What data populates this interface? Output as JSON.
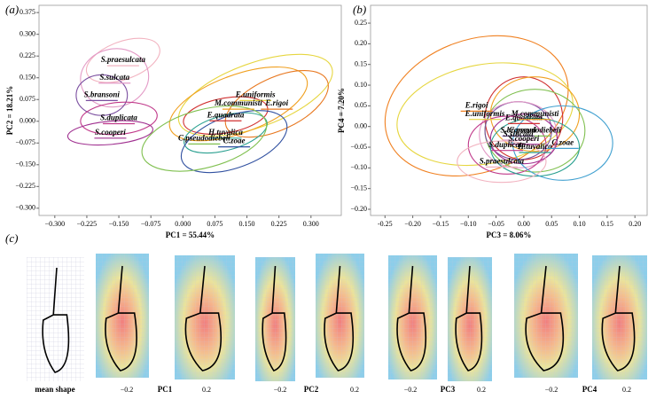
{
  "chart_data": [
    {
      "type": "ellipse",
      "panel": "(a)",
      "xlabel": "PC1 = 55.44%",
      "ylabel": "PC2 = 18.21%",
      "xlim": [
        -0.337,
        0.371
      ],
      "ylim": [
        -0.325,
        0.4
      ],
      "xticks": [
        {
          "value": -0.3,
          "label": "−0.300"
        },
        {
          "value": -0.225,
          "label": "−0.225"
        },
        {
          "value": -0.15,
          "label": "−0.150"
        },
        {
          "value": -0.075,
          "label": "−0.075"
        },
        {
          "value": 0,
          "label": "0.000"
        },
        {
          "value": 0.075,
          "label": "0.075"
        },
        {
          "value": 0.15,
          "label": "0.150"
        },
        {
          "value": 0.225,
          "label": "0.225"
        },
        {
          "value": 0.3,
          "label": "0.300"
        }
      ],
      "yticks": [
        0.375,
        {
          "value": 0.3,
          "label": "0.300"
        },
        0.225,
        {
          "value": 0.15,
          "label": "0.150"
        },
        0.075,
        {
          "value": 0,
          "label": "0.000"
        },
        {
          "value": -0.075,
          "label": "−0.075"
        },
        {
          "value": -0.15,
          "label": "−0.150"
        },
        {
          "value": -0.225,
          "label": "−0.225"
        },
        {
          "value": -0.3,
          "label": "−0.300"
        }
      ],
      "series": [
        {
          "name": "S.praesulcata",
          "color": "#f2b3c0",
          "center": [
            -0.14,
            0.21
          ],
          "radii": [
            0.09,
            0.065
          ],
          "angle": 20
        },
        {
          "name": "S.sulcata",
          "color": "#e39ac6",
          "center": [
            -0.16,
            0.15
          ],
          "radii": [
            0.08,
            0.1
          ],
          "angle": 10
        },
        {
          "name": "S.bransoni",
          "color": "#7b4fa0",
          "center": [
            -0.19,
            0.09
          ],
          "radii": [
            0.06,
            0.07
          ],
          "angle": 0
        },
        {
          "name": "S.duplicata",
          "color": "#c0398a",
          "center": [
            -0.15,
            0.01
          ],
          "radii": [
            0.09,
            0.055
          ],
          "angle": 5
        },
        {
          "name": "S.cooperi",
          "color": "#a03090",
          "center": [
            -0.17,
            -0.04
          ],
          "radii": [
            0.1,
            0.04
          ],
          "angle": 5
        },
        {
          "name": "E.uniformis",
          "color": "#e6d640",
          "center": [
            0.17,
            0.09
          ],
          "radii": [
            0.19,
            0.11
          ],
          "angle": 20
        },
        {
          "name": "M.communisti",
          "color": "#f0a020",
          "center": [
            0.13,
            0.06
          ],
          "radii": [
            0.17,
            0.1
          ],
          "angle": 20
        },
        {
          "name": "E.rigoi",
          "color": "#e87820",
          "center": [
            0.22,
            0.06
          ],
          "radii": [
            0.13,
            0.09
          ],
          "angle": 25
        },
        {
          "name": "E.quadrata",
          "color": "#d03030",
          "center": [
            0.1,
            0.02
          ],
          "radii": [
            0.1,
            0.06
          ],
          "angle": 10
        },
        {
          "name": "H.tuvalica",
          "color": "#2aa090",
          "center": [
            0.1,
            -0.04
          ],
          "radii": [
            0.1,
            0.06
          ],
          "angle": 15
        },
        {
          "name": "C.zoae",
          "color": "#3050a0",
          "center": [
            0.12,
            -0.07
          ],
          "radii": [
            0.13,
            0.09
          ],
          "angle": 20
        },
        {
          "name": "C.pseudodiebeli",
          "color": "#80c050",
          "center": [
            0.05,
            -0.06
          ],
          "radii": [
            0.15,
            0.1
          ],
          "angle": 15
        }
      ]
    },
    {
      "type": "ellipse",
      "panel": "(b)",
      "xlabel": "PC3 = 8.06%",
      "ylabel": "PC4 = 7.20%",
      "xlim": [
        -0.276,
        0.222
      ],
      "ylim": [
        -0.215,
        0.293
      ],
      "xticks": [
        -0.25,
        {
          "value": -0.2,
          "label": "−0.20"
        },
        {
          "value": -0.15,
          "label": "−0.15"
        },
        {
          "value": -0.1,
          "label": "−0.10"
        },
        {
          "value": -0.05,
          "label": "−0.05"
        },
        {
          "value": 0,
          "label": "0.00"
        },
        0.05,
        {
          "value": 0.1,
          "label": "0.10"
        },
        0.15,
        {
          "value": 0.2,
          "label": "0.20"
        }
      ],
      "yticks": [
        0.25,
        {
          "value": 0.2,
          "label": "0.20"
        },
        0.15,
        {
          "value": 0.1,
          "label": "0.10"
        },
        0.05,
        {
          "value": 0,
          "label": "0.00"
        },
        {
          "value": -0.05,
          "label": "−0.05"
        },
        {
          "value": -0.1,
          "label": "−0.10"
        },
        {
          "value": -0.15,
          "label": "−0.15"
        },
        {
          "value": -0.2,
          "label": "−0.20"
        }
      ],
      "series": [
        {
          "name": "E.rigoi",
          "color": "#f08020",
          "center": [
            -0.085,
            0.05
          ],
          "radii": [
            0.17,
            0.16
          ],
          "angle": 20
        },
        {
          "name": "E.uniformis",
          "color": "#e6d640",
          "center": [
            -0.07,
            0.03
          ],
          "radii": [
            0.16,
            0.12
          ],
          "angle": 10
        },
        {
          "name": "E.quadrata",
          "color": "#d03030",
          "center": [
            0.0,
            0.02
          ],
          "radii": [
            0.07,
            0.1
          ],
          "angle": 0
        },
        {
          "name": "M.communisti",
          "color": "#f0a020",
          "center": [
            0.02,
            0.03
          ],
          "radii": [
            0.08,
            0.09
          ],
          "angle": 0
        },
        {
          "name": "C.pseudodiebeli",
          "color": "#80c050",
          "center": [
            0.02,
            -0.01
          ],
          "radii": [
            0.09,
            0.1
          ],
          "angle": 0
        },
        {
          "name": "S.bransoni",
          "color": "#7b4fa0",
          "center": [
            -0.01,
            -0.01
          ],
          "radii": [
            0.06,
            0.07
          ],
          "angle": 0
        },
        {
          "name": "S.sulcata",
          "color": "#e39ac6",
          "center": [
            -0.01,
            -0.02
          ],
          "radii": [
            0.07,
            0.08
          ],
          "angle": 0
        },
        {
          "name": "S.cooperi",
          "color": "#a03090",
          "center": [
            0.0,
            -0.03
          ],
          "radii": [
            0.06,
            0.06
          ],
          "angle": 0
        },
        {
          "name": "S.duplicata",
          "color": "#c0398a",
          "center": [
            -0.03,
            -0.045
          ],
          "radii": [
            0.07,
            0.07
          ],
          "angle": 0
        },
        {
          "name": "H.tuvalica",
          "color": "#2aa090",
          "center": [
            0.02,
            -0.05
          ],
          "radii": [
            0.08,
            0.07
          ],
          "angle": 0
        },
        {
          "name": "C.zoae",
          "color": "#40a0d0",
          "center": [
            0.07,
            -0.04
          ],
          "radii": [
            0.09,
            0.09
          ],
          "angle": 0
        },
        {
          "name": "S.praesulcata",
          "color": "#f2b3c0",
          "center": [
            -0.04,
            -0.085
          ],
          "radii": [
            0.08,
            0.05
          ],
          "angle": 0
        }
      ]
    }
  ],
  "panel_c": {
    "panel": "(c)",
    "mean_label": "mean shape",
    "components": [
      {
        "name": "PC1",
        "low": "−0.2",
        "high": "0.2"
      },
      {
        "name": "PC2",
        "low": "−0.2",
        "high": "0.2"
      },
      {
        "name": "PC3",
        "low": "−0.2",
        "high": "0.2"
      },
      {
        "name": "PC4",
        "low": "−0.2",
        "high": "0.2"
      }
    ]
  }
}
